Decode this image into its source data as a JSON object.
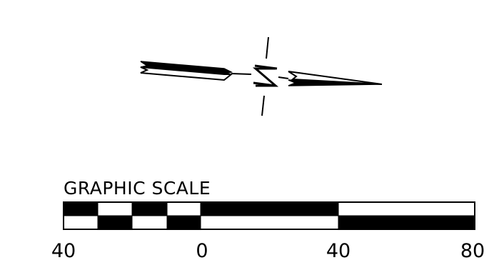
{
  "north_arrow": {
    "letter": "N",
    "icon": "north-arrow-icon"
  },
  "graphic_scale": {
    "title": "GRAPHIC SCALE",
    "tick_labels": [
      "40",
      "0",
      "40",
      "80"
    ]
  },
  "colors": {
    "ink": "#000000",
    "paper": "#ffffff"
  }
}
